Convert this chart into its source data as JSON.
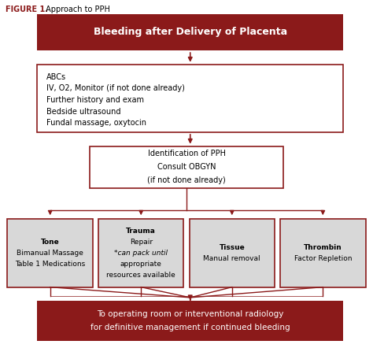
{
  "title_figure": "FIGURE 1.",
  "title_text": " Approach to PPH",
  "background_color": "#ffffff",
  "dark_red": "#8B1A1A",
  "light_gray": "#D8D8D8",
  "border_red": "#8B1A1A",
  "arrow_color": "#8B1A1A",
  "box1_text": "Bleeding after Delivery of Placenta",
  "box2_text": "ABCs\nIV, O2, Monitor (if not done already)\nFurther history and exam\nBedside ultrasound\nFundal massage, oxytocin",
  "box3_text": "Identification of PPH\nConsult OBGYN\n(if not done already)",
  "box4a_title": "Tone",
  "box4a_body": "Bimanual Massage\nTable 1 Medications",
  "box4b_title": "Trauma",
  "box4b_body": "Repair\n*can pack until\nappropriate\nresources available",
  "box4c_title": "Tissue",
  "box4c_body": "Manual removal",
  "box4d_title": "Thrombin",
  "box4d_body": "Factor Repletion",
  "box5_text": "To operating room or interventional radiology\nfor definitive management if continued bleeding",
  "fig_width": 4.74,
  "fig_height": 4.42,
  "dpi": 100
}
